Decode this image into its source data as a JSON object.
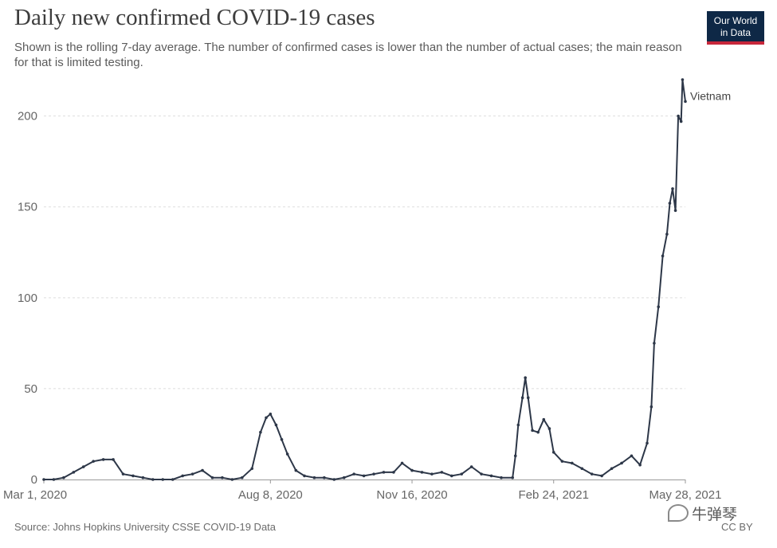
{
  "header": {
    "title": "Daily new confirmed COVID-19 cases",
    "subtitle": "Shown is the rolling 7-day average. The number of confirmed cases is lower than the number of actual cases; the main reason for that is limited testing.",
    "logo_line1": "Our World",
    "logo_line2": "in Data"
  },
  "footer": {
    "source": "Source: Johns Hopkins University CSSE COVID-19 Data",
    "license": "CC BY",
    "watermark": "牛弹琴"
  },
  "colors": {
    "line": "#2d3748",
    "grid": "#dddddd",
    "axis_text": "#666666",
    "logo_bg": "#0e2846",
    "logo_accent": "#c7273b"
  },
  "chart_data": {
    "type": "line",
    "x_tick_labels": [
      "Mar 1, 2020",
      "Aug 8, 2020",
      "Nov 16, 2020",
      "Feb 24, 2021",
      "May 28, 2021"
    ],
    "x_tick_dates": [
      "2020-03-01",
      "2020-08-08",
      "2020-11-16",
      "2021-02-24",
      "2021-05-28"
    ],
    "y_ticks": [
      0,
      50,
      100,
      150,
      200
    ],
    "ylim": [
      0,
      220
    ],
    "xlim": [
      "2020-03-01",
      "2021-05-28"
    ],
    "grid": "horizontal dashed",
    "legend": "end-of-line label",
    "series": [
      {
        "name": "Vietnam",
        "points": [
          [
            "2020-03-01",
            0
          ],
          [
            "2020-03-08",
            0
          ],
          [
            "2020-03-15",
            1
          ],
          [
            "2020-03-22",
            4
          ],
          [
            "2020-03-29",
            7
          ],
          [
            "2020-04-05",
            10
          ],
          [
            "2020-04-12",
            11
          ],
          [
            "2020-04-19",
            11
          ],
          [
            "2020-04-26",
            3
          ],
          [
            "2020-05-03",
            2
          ],
          [
            "2020-05-10",
            1
          ],
          [
            "2020-05-17",
            0
          ],
          [
            "2020-05-24",
            0
          ],
          [
            "2020-05-31",
            0
          ],
          [
            "2020-06-07",
            2
          ],
          [
            "2020-06-14",
            3
          ],
          [
            "2020-06-21",
            5
          ],
          [
            "2020-06-28",
            1
          ],
          [
            "2020-07-05",
            1
          ],
          [
            "2020-07-12",
            0
          ],
          [
            "2020-07-19",
            1
          ],
          [
            "2020-07-26",
            6
          ],
          [
            "2020-08-01",
            26
          ],
          [
            "2020-08-05",
            34
          ],
          [
            "2020-08-08",
            36
          ],
          [
            "2020-08-12",
            30
          ],
          [
            "2020-08-16",
            22
          ],
          [
            "2020-08-20",
            14
          ],
          [
            "2020-08-26",
            5
          ],
          [
            "2020-09-01",
            2
          ],
          [
            "2020-09-08",
            1
          ],
          [
            "2020-09-15",
            1
          ],
          [
            "2020-09-22",
            0
          ],
          [
            "2020-09-29",
            1
          ],
          [
            "2020-10-06",
            3
          ],
          [
            "2020-10-13",
            2
          ],
          [
            "2020-10-20",
            3
          ],
          [
            "2020-10-27",
            4
          ],
          [
            "2020-11-03",
            4
          ],
          [
            "2020-11-09",
            9
          ],
          [
            "2020-11-16",
            5
          ],
          [
            "2020-11-23",
            4
          ],
          [
            "2020-11-30",
            3
          ],
          [
            "2020-12-07",
            4
          ],
          [
            "2020-12-14",
            2
          ],
          [
            "2020-12-21",
            3
          ],
          [
            "2020-12-28",
            7
          ],
          [
            "2021-01-04",
            3
          ],
          [
            "2021-01-11",
            2
          ],
          [
            "2021-01-18",
            1
          ],
          [
            "2021-01-26",
            1
          ],
          [
            "2021-01-28",
            13
          ],
          [
            "2021-01-30",
            30
          ],
          [
            "2021-02-02",
            45
          ],
          [
            "2021-02-04",
            56
          ],
          [
            "2021-02-06",
            45
          ],
          [
            "2021-02-09",
            27
          ],
          [
            "2021-02-13",
            26
          ],
          [
            "2021-02-17",
            33
          ],
          [
            "2021-02-21",
            28
          ],
          [
            "2021-02-24",
            15
          ],
          [
            "2021-03-02",
            10
          ],
          [
            "2021-03-09",
            9
          ],
          [
            "2021-03-16",
            6
          ],
          [
            "2021-03-23",
            3
          ],
          [
            "2021-03-30",
            2
          ],
          [
            "2021-04-06",
            6
          ],
          [
            "2021-04-13",
            9
          ],
          [
            "2021-04-20",
            13
          ],
          [
            "2021-04-26",
            8
          ],
          [
            "2021-05-01",
            20
          ],
          [
            "2021-05-04",
            40
          ],
          [
            "2021-05-06",
            75
          ],
          [
            "2021-05-09",
            95
          ],
          [
            "2021-05-12",
            123
          ],
          [
            "2021-05-15",
            135
          ],
          [
            "2021-05-17",
            152
          ],
          [
            "2021-05-19",
            160
          ],
          [
            "2021-05-21",
            148
          ],
          [
            "2021-05-23",
            200
          ],
          [
            "2021-05-25",
            197
          ],
          [
            "2021-05-26",
            220
          ],
          [
            "2021-05-28",
            208
          ]
        ]
      }
    ]
  }
}
